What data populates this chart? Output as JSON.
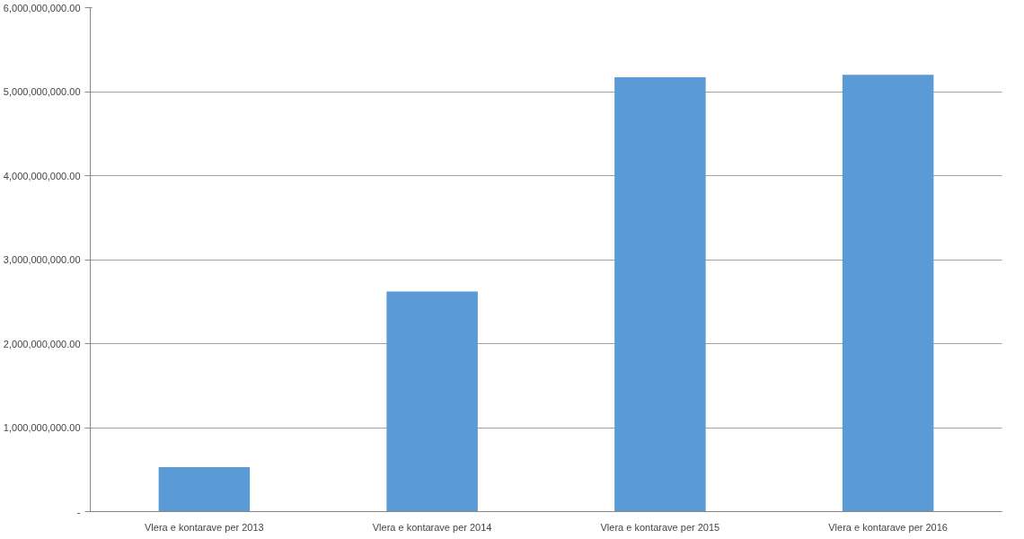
{
  "chart_data": {
    "type": "bar",
    "categories": [
      "Vlera e kontarave per 2013",
      "Vlera e kontarave per 2014",
      "Vlera e kontarave per 2015",
      "Vlera e kontarave per 2016"
    ],
    "values": [
      530000000,
      2620000000,
      5170000000,
      5200000000
    ],
    "color": "#5b9bd5",
    "ylim": [
      0,
      6000000000
    ],
    "yticks": [
      {
        "value": 0,
        "label": "-"
      },
      {
        "value": 1000000000,
        "label": "1,000,000,000.00"
      },
      {
        "value": 2000000000,
        "label": "2,000,000,000.00"
      },
      {
        "value": 3000000000,
        "label": "3,000,000,000.00"
      },
      {
        "value": 4000000000,
        "label": "4,000,000,000.00"
      },
      {
        "value": 5000000000,
        "label": "5,000,000,000.00"
      },
      {
        "value": 6000000000,
        "label": "6,000,000,000.00"
      }
    ],
    "grid": "y"
  }
}
